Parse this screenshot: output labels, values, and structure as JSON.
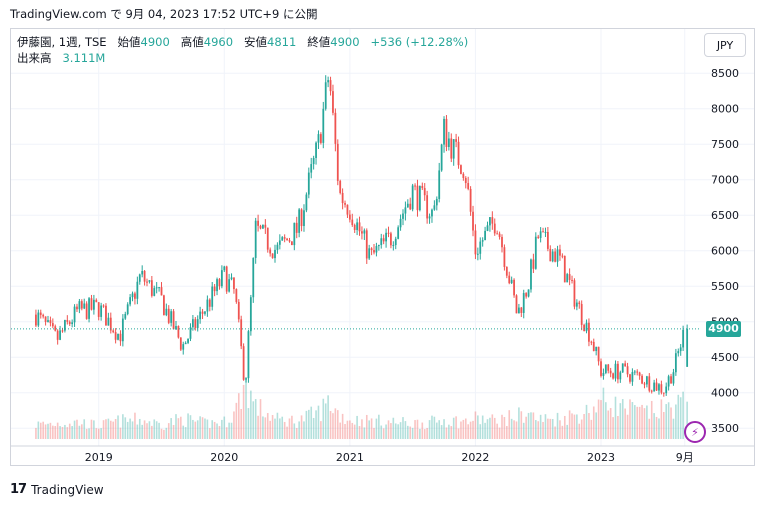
{
  "header": {
    "text": "TradingView.com で 9月 04, 2023 17:52 UTC+9 に公開"
  },
  "legend": {
    "symbol": "伊藤園, 1週, TSE",
    "open_label": "始値",
    "open": "4900",
    "high_label": "高値",
    "high": "4960",
    "low_label": "安値",
    "low": "4811",
    "close_label": "終値",
    "close": "4900",
    "change": "+536 (+12.28%)",
    "volume_label": "出来高",
    "volume": "3.111M"
  },
  "currency": "JPY",
  "last_price": "4900",
  "footer": {
    "logo": "17",
    "brand": "TradingView"
  },
  "colors": {
    "up": "#26a69a",
    "down": "#ef5350",
    "grid": "#f0f3fa",
    "text": "#131722"
  },
  "icons": {
    "alert": "lightning-icon",
    "logo": "tradingview-logo-icon"
  },
  "chart_data": {
    "type": "candlestick",
    "title": "",
    "x_tick_labels": [
      "2019",
      "2020",
      "2021",
      "2022",
      "2023",
      "9月"
    ],
    "y_tick_labels": [
      "3500",
      "4000",
      "4500",
      "5000",
      "5500",
      "6000",
      "6500",
      "7000",
      "7500",
      "8000",
      "8500"
    ],
    "ylim": [
      3250,
      8700
    ],
    "last_price_line": 4900,
    "grid": true,
    "legend_position": "top-left",
    "series": [
      {
        "date": [
          "2018-07",
          "2018-09",
          "2018-11",
          "2019-01",
          "2019-03",
          "2019-05",
          "2019-07",
          "2019-09",
          "2019-11",
          "2020-01",
          "2020-02",
          "2020-03",
          "2020-04",
          "2020-06",
          "2020-08",
          "2020-10",
          "2020-11",
          "2020-12",
          "2021-01",
          "2021-03",
          "2021-05",
          "2021-07",
          "2021-09",
          "2021-10",
          "2021-11",
          "2021-12",
          "2022-01",
          "2022-03",
          "2022-05",
          "2022-06",
          "2022-07",
          "2022-09",
          "2022-11",
          "2022-12",
          "2023-01",
          "2023-03",
          "2023-05",
          "2023-07",
          "2023-08",
          "2023-09"
        ],
        "close": [
          5100,
          4750,
          5150,
          5200,
          4800,
          5650,
          5300,
          4650,
          5150,
          5650,
          5400,
          4100,
          6300,
          6000,
          6300,
          7500,
          8500,
          6800,
          6600,
          5900,
          6200,
          6850,
          6500,
          7700,
          7400,
          7150,
          6000,
          6450,
          5100,
          5500,
          6200,
          5900,
          5150,
          4800,
          4300,
          4300,
          4200,
          4050,
          4350,
          4900
        ],
        "volume_millions": [
          1.2,
          1.3,
          1.4,
          1.1,
          1.5,
          1.6,
          1.2,
          1.7,
          1.3,
          1.4,
          2.2,
          4.6,
          2.7,
          1.6,
          1.5,
          2.2,
          3.1,
          2.0,
          1.6,
          1.5,
          1.4,
          1.3,
          1.4,
          1.6,
          1.5,
          1.4,
          1.7,
          1.5,
          1.9,
          2.2,
          1.6,
          1.7,
          2.1,
          2.3,
          3.2,
          2.6,
          2.2,
          2.4,
          2.8,
          3.1
        ]
      }
    ]
  }
}
